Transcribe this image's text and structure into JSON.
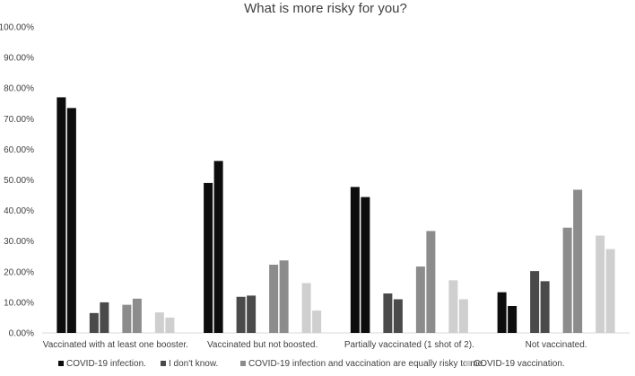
{
  "chart_data": {
    "type": "bar",
    "title": "What is more risky for you?",
    "xlabel": "",
    "ylabel": "",
    "ylim": [
      0,
      100
    ],
    "yticks": [
      "0.00%",
      "10.00%",
      "20.00%",
      "30.00%",
      "40.00%",
      "50.00%",
      "60.00%",
      "70.00%",
      "80.00%",
      "90.00%",
      "100.00%"
    ],
    "grid": false,
    "legend_position": "bottom",
    "categories": [
      "Vaccinated with at least one booster.",
      "Vaccinated but not boosted.",
      "Partially vaccinated (1 shot of 2).",
      "Not vaccinated."
    ],
    "series": [
      {
        "name": "COVID-19 infection.",
        "color": "#0d0d0d",
        "values": [
          [
            77.0,
            73.5
          ],
          [
            49.0,
            56.2
          ],
          [
            47.7,
            44.4
          ],
          [
            13.3,
            8.8
          ]
        ]
      },
      {
        "name": "I don't know.",
        "color": "#4a4a4a",
        "values": [
          [
            6.5,
            10.0
          ],
          [
            11.8,
            12.2
          ],
          [
            12.9,
            11.0
          ],
          [
            20.2,
            16.9
          ]
        ]
      },
      {
        "name": "COVID-19 infection and vaccination are equally risky to me.",
        "color": "#8c8c8c",
        "values": [
          [
            9.2,
            11.2
          ],
          [
            22.3,
            23.7
          ],
          [
            21.7,
            33.3
          ],
          [
            34.4,
            46.8
          ]
        ]
      },
      {
        "name": "COVID-19 vaccination.",
        "color": "#cfcfcf",
        "values": [
          [
            6.7,
            5.0
          ],
          [
            16.3,
            7.3
          ],
          [
            17.2,
            11.0
          ],
          [
            31.8,
            27.4
          ]
        ]
      }
    ]
  }
}
